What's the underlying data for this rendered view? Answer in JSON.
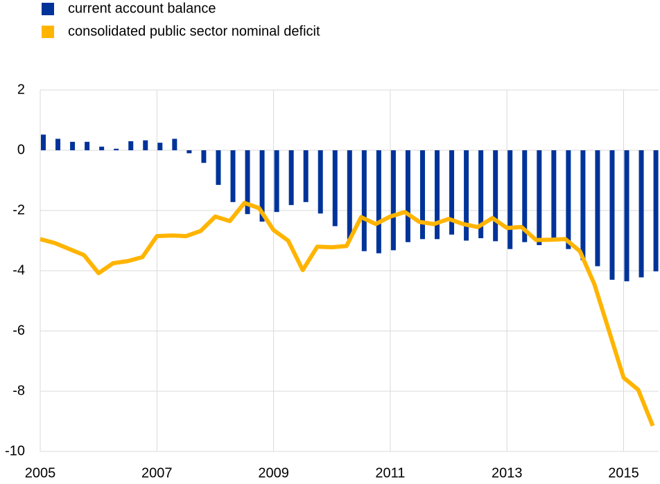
{
  "chart_data": {
    "type": "combo",
    "x": [
      2005,
      2005.25,
      2005.5,
      2005.75,
      2006,
      2006.25,
      2006.5,
      2006.75,
      2007,
      2007.25,
      2007.5,
      2007.75,
      2008,
      2008.25,
      2008.5,
      2008.75,
      2009,
      2009.25,
      2009.5,
      2009.75,
      2010,
      2010.25,
      2010.5,
      2010.75,
      2011,
      2011.25,
      2011.5,
      2011.75,
      2012,
      2012.25,
      2012.5,
      2012.75,
      2013,
      2013.25,
      2013.5,
      2013.75,
      2014,
      2014.25,
      2014.5,
      2014.75,
      2015,
      2015.25,
      2015.5
    ],
    "series": [
      {
        "name": "current account balance",
        "type": "bar",
        "color": "#003399",
        "values": [
          0.52,
          0.38,
          0.28,
          0.28,
          0.12,
          0.05,
          0.3,
          0.33,
          0.25,
          0.38,
          -0.1,
          -0.42,
          -1.15,
          -1.72,
          -2.12,
          -2.37,
          -2.05,
          -1.82,
          -1.72,
          -2.1,
          -2.52,
          -2.95,
          -3.35,
          -3.42,
          -3.32,
          -3.05,
          -2.95,
          -2.95,
          -2.8,
          -3.0,
          -2.92,
          -3.02,
          -3.28,
          -3.05,
          -3.15,
          -2.95,
          -3.28,
          -3.65,
          -3.85,
          -4.3,
          -4.35,
          -4.22,
          -4.02
        ]
      },
      {
        "name": "consolidated public sector nominal deficit",
        "type": "line",
        "color": "#ffb400",
        "values": [
          -2.95,
          -3.08,
          -3.28,
          -3.48,
          -4.08,
          -3.75,
          -3.68,
          -3.55,
          -2.85,
          -2.83,
          -2.85,
          -2.68,
          -2.2,
          -2.35,
          -1.75,
          -1.92,
          -2.65,
          -3.0,
          -3.98,
          -3.2,
          -3.22,
          -3.18,
          -2.22,
          -2.45,
          -2.2,
          -2.05,
          -2.38,
          -2.45,
          -2.28,
          -2.45,
          -2.55,
          -2.25,
          -2.58,
          -2.55,
          -2.98,
          -2.97,
          -2.95,
          -3.35,
          -4.45,
          -6.0,
          -7.55,
          -7.95,
          -9.15
        ]
      }
    ],
    "xlim": [
      2005,
      2015.6
    ],
    "xticks": [
      2005,
      2007,
      2009,
      2011,
      2013,
      2015
    ],
    "ylim": [
      -10,
      2
    ],
    "yticks": [
      2,
      0,
      -2,
      -4,
      -6,
      -8,
      -10
    ],
    "grid": true,
    "legend": "top-left"
  }
}
